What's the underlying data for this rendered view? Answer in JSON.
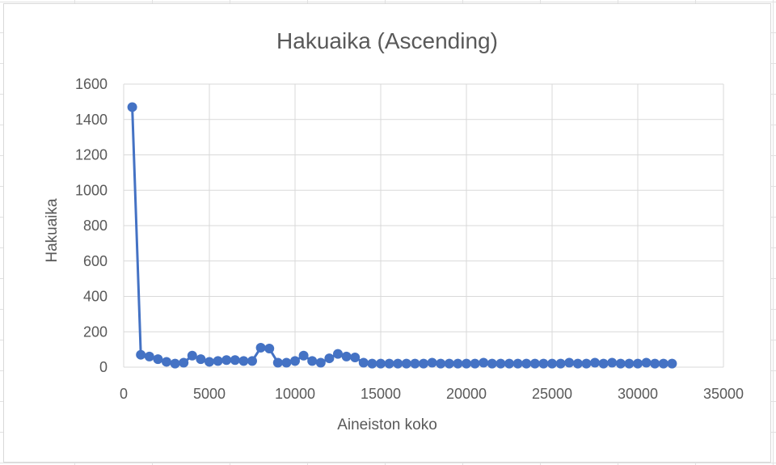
{
  "chart_data": {
    "type": "line",
    "title": "Hakuaika (Ascending)",
    "xlabel": "Aineiston koko",
    "ylabel": "Hakuaika",
    "xlim": [
      0,
      35000
    ],
    "ylim": [
      0,
      1600
    ],
    "x_ticks": [
      "0",
      "5000",
      "10000",
      "15000",
      "20000",
      "25000",
      "30000",
      "35000"
    ],
    "y_ticks": [
      "0",
      "200",
      "400",
      "600",
      "800",
      "1000",
      "1200",
      "1400",
      "1600"
    ],
    "grid": true,
    "legend": "none",
    "series": [
      {
        "color": "#4472c4",
        "markers": true,
        "x": [
          500,
          1000,
          1500,
          2000,
          2500,
          3000,
          3500,
          4000,
          4500,
          5000,
          5500,
          6000,
          6500,
          7000,
          7500,
          8000,
          8500,
          9000,
          9500,
          10000,
          10500,
          11000,
          11500,
          12000,
          12500,
          13000,
          13500,
          14000,
          14500,
          15000,
          15500,
          16000,
          16500,
          17000,
          17500,
          18000,
          18500,
          19000,
          19500,
          20000,
          20500,
          21000,
          21500,
          22000,
          22500,
          23000,
          23500,
          24000,
          24500,
          25000,
          25500,
          26000,
          26500,
          27000,
          27500,
          28000,
          28500,
          29000,
          29500,
          30000,
          30500,
          31000,
          31500,
          32000
        ],
        "values": [
          1470,
          70,
          60,
          45,
          30,
          20,
          25,
          65,
          45,
          30,
          35,
          40,
          40,
          35,
          35,
          110,
          105,
          25,
          25,
          35,
          65,
          35,
          25,
          50,
          75,
          60,
          55,
          25,
          20,
          20,
          20,
          20,
          20,
          20,
          20,
          25,
          20,
          20,
          20,
          20,
          20,
          25,
          20,
          20,
          20,
          20,
          20,
          20,
          20,
          20,
          20,
          25,
          20,
          20,
          25,
          20,
          25,
          20,
          20,
          20,
          25,
          20,
          20,
          20
        ]
      }
    ]
  }
}
